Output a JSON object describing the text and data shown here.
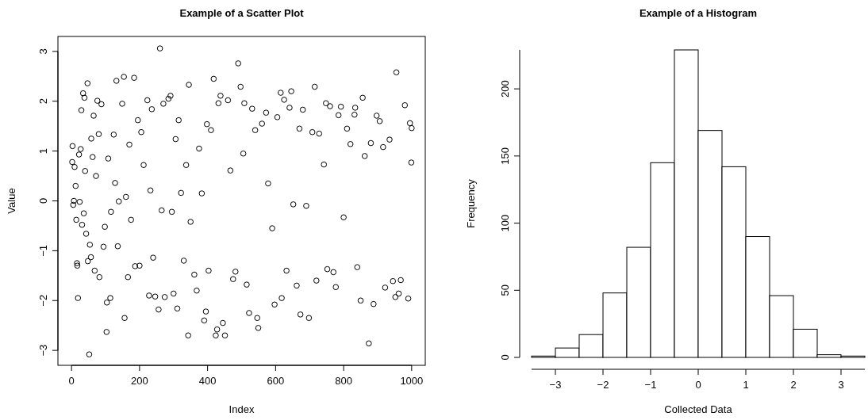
{
  "chart_data": [
    {
      "type": "scatter",
      "title": "Example of a Scatter Plot",
      "xlabel": "Index",
      "ylabel": "Value",
      "xlim": [
        -40,
        1040
      ],
      "ylim": [
        -3.3,
        3.3
      ],
      "xticks": [
        0,
        200,
        400,
        600,
        800,
        1000
      ],
      "yticks": [
        -3,
        -2,
        -1,
        0,
        1,
        2,
        3
      ],
      "grid": false,
      "marker": "circle",
      "series": [
        {
          "color": "#000000",
          "x": [
            2,
            3,
            5,
            7,
            9,
            12,
            14,
            16,
            17,
            19,
            22,
            24,
            27,
            29,
            31,
            34,
            36,
            38,
            40,
            43,
            47,
            48,
            52,
            54,
            57,
            58,
            62,
            65,
            68,
            72,
            76,
            80,
            82,
            88,
            94,
            98,
            103,
            104,
            108,
            114,
            116,
            124,
            128,
            132,
            136,
            139,
            149,
            154,
            156,
            160,
            166,
            170,
            175,
            184,
            187,
            195,
            200,
            205,
            212,
            223,
            228,
            232,
            236,
            240,
            246,
            256,
            260,
            265,
            270,
            274,
            285,
            291,
            295,
            300,
            306,
            311,
            315,
            322,
            330,
            337,
            343,
            345,
            350,
            361,
            368,
            375,
            383,
            390,
            395,
            398,
            403,
            410,
            418,
            424,
            428,
            432,
            438,
            445,
            451,
            460,
            467,
            475,
            482,
            490,
            497,
            505,
            508,
            515,
            522,
            531,
            540,
            546,
            549,
            560,
            572,
            578,
            590,
            597,
            605,
            615,
            618,
            625,
            632,
            641,
            646,
            652,
            662,
            670,
            673,
            680,
            690,
            698,
            708,
            715,
            720,
            728,
            742,
            748,
            752,
            760,
            770,
            777,
            785,
            792,
            800,
            810,
            820,
            832,
            834,
            840,
            850,
            856,
            862,
            874,
            880,
            888,
            897,
            906,
            916,
            922,
            935,
            945,
            952,
            955,
            962,
            968,
            980,
            990,
            995,
            999,
            1000
          ],
          "values": [
            0.78,
            1.1,
            -0.08,
            0,
            0.68,
            0.3,
            -0.38,
            -1.25,
            -1.3,
            -1.95,
            0.93,
            -0.02,
            1.04,
            1.82,
            -0.48,
            2.16,
            -0.25,
            2.07,
            0.6,
            -0.66,
            2.36,
            -1.21,
            -3.08,
            -0.88,
            -1.13,
            1.25,
            0.88,
            1.71,
            -1.4,
            0.5,
            2.01,
            1.34,
            -1.53,
            1.94,
            -0.92,
            -0.52,
            -2.63,
            -2.04,
            0.85,
            -1.95,
            -0.22,
            1.33,
            0.36,
            2.41,
            -0.91,
            -0.01,
            1.95,
            2.49,
            -2.35,
            0.08,
            -1.53,
            1.13,
            -0.38,
            2.47,
            -1.31,
            1.62,
            -1.3,
            1.38,
            0.72,
            2.02,
            -1.9,
            0.21,
            1.84,
            -1.14,
            -1.92,
            -2.18,
            3.06,
            -0.19,
            1.95,
            -1.93,
            2.05,
            2.11,
            -0.22,
            -1.86,
            1.24,
            -2.16,
            1.62,
            0.16,
            -1.2,
            0.72,
            -2.7,
            2.33,
            -0.42,
            -1.48,
            -1.8,
            1.05,
            0.15,
            -2.4,
            -2.22,
            1.54,
            -1.4,
            1.42,
            2.45,
            -2.7,
            -2.58,
            1.96,
            2.11,
            -2.45,
            -2.7,
            2.02,
            0.61,
            -1.57,
            -1.42,
            2.76,
            2.29,
            0.95,
            1.96,
            -1.68,
            -2.25,
            1.85,
            1.42,
            -2.35,
            -2.55,
            1.55,
            1.77,
            0.35,
            -0.55,
            -2.08,
            1.68,
            2.17,
            -1.95,
            2.03,
            -1.4,
            1.87,
            2.2,
            -0.07,
            -1.7,
            1.45,
            -2.28,
            1.83,
            -0.1,
            -2.35,
            1.38,
            2.29,
            -1.6,
            1.35,
            0.73,
            1.96,
            -1.37,
            1.9,
            -1.43,
            -1.73,
            1.72,
            1.89,
            -0.33,
            1.45,
            1.14,
            1.73,
            1.87,
            -1.33,
            -2.0,
            2.07,
            0.9,
            -2.86,
            1.16,
            -2.07,
            1.71,
            1.6,
            1.08,
            -1.74,
            1.23,
            -1.61,
            -1.93,
            2.58,
            -1.86,
            -1.59,
            1.92,
            -1.96,
            1.56,
            0.77,
            1.46
          ]
        }
      ]
    },
    {
      "type": "histogram",
      "title": "Example of a Histogram",
      "xlabel": "Collected Data",
      "ylabel": "Frequency",
      "xlim": [
        -3.5,
        3.5
      ],
      "ylim": [
        0,
        229
      ],
      "xticks": [
        -3,
        -2,
        -1,
        0,
        1,
        2,
        3
      ],
      "yticks": [
        0,
        50,
        100,
        150,
        200
      ],
      "grid": false,
      "color": "#ffffff",
      "bins": [
        -3.5,
        -3,
        -2.5,
        -2,
        -1.5,
        -1,
        -0.5,
        0,
        0.5,
        1,
        1.5,
        2,
        2.5,
        3,
        3.5
      ],
      "values": [
        1,
        7,
        17,
        48,
        82,
        145,
        229,
        169,
        142,
        90,
        46,
        21,
        2,
        1
      ]
    }
  ]
}
